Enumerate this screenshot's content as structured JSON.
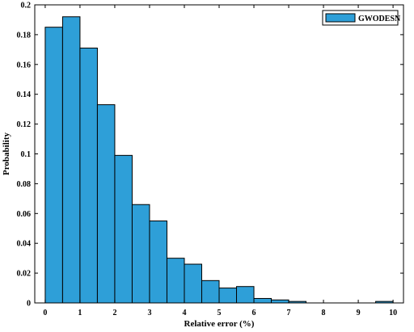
{
  "chart_data": {
    "type": "bar",
    "title": "",
    "xlabel": "Relative error (%)",
    "ylabel": "Probability",
    "xlim": [
      -0.3,
      10.3
    ],
    "ylim": [
      0,
      0.2
    ],
    "bin_width": 0.5,
    "x_ticks": [
      0,
      1,
      2,
      3,
      4,
      5,
      6,
      7,
      8,
      9,
      10
    ],
    "x_tick_labels": [
      "0",
      "1",
      "2",
      "3",
      "4",
      "5",
      "6",
      "7",
      "8",
      "9",
      "10"
    ],
    "y_ticks": [
      0,
      0.02,
      0.04,
      0.06,
      0.08,
      0.1,
      0.12,
      0.14,
      0.16,
      0.18,
      0.2
    ],
    "y_tick_labels": [
      "0",
      "0.02",
      "0.04",
      "0.06",
      "0.08",
      "0.1",
      "0.12",
      "0.14",
      "0.16",
      "0.18",
      "0.2"
    ],
    "grid": false,
    "legend_position": "top-right",
    "series": [
      {
        "name": "GWODESN",
        "color": "#2e9fd8",
        "bins": [
          {
            "x0": 0.0,
            "x1": 0.5,
            "value": 0.185
          },
          {
            "x0": 0.5,
            "x1": 1.0,
            "value": 0.192
          },
          {
            "x0": 1.0,
            "x1": 1.5,
            "value": 0.171
          },
          {
            "x0": 1.5,
            "x1": 2.0,
            "value": 0.133
          },
          {
            "x0": 2.0,
            "x1": 2.5,
            "value": 0.099
          },
          {
            "x0": 2.5,
            "x1": 3.0,
            "value": 0.066
          },
          {
            "x0": 3.0,
            "x1": 3.5,
            "value": 0.055
          },
          {
            "x0": 3.5,
            "x1": 4.0,
            "value": 0.03
          },
          {
            "x0": 4.0,
            "x1": 4.5,
            "value": 0.026
          },
          {
            "x0": 4.5,
            "x1": 5.0,
            "value": 0.015
          },
          {
            "x0": 5.0,
            "x1": 5.5,
            "value": 0.01
          },
          {
            "x0": 5.5,
            "x1": 6.0,
            "value": 0.011
          },
          {
            "x0": 6.0,
            "x1": 6.5,
            "value": 0.003
          },
          {
            "x0": 6.5,
            "x1": 7.0,
            "value": 0.002
          },
          {
            "x0": 7.0,
            "x1": 7.5,
            "value": 0.001
          },
          {
            "x0": 9.5,
            "x1": 10.0,
            "value": 0.001
          }
        ]
      }
    ]
  }
}
